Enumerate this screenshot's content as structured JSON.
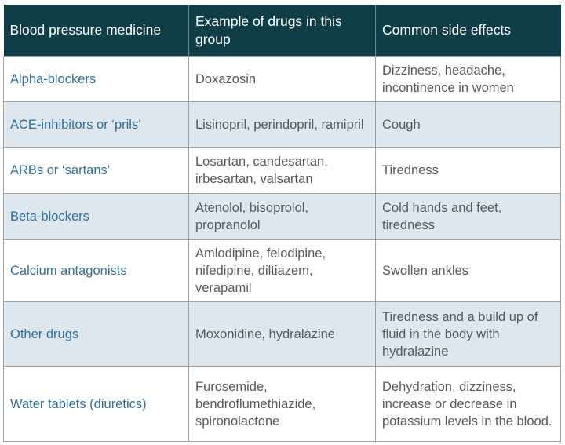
{
  "headers": [
    "Blood pressure medicine",
    "Example of drugs in this group",
    "Common side effects"
  ],
  "rows": [
    {
      "medicine": "Alpha-blockers",
      "drugs": "Doxazosin",
      "side_effects": "Dizziness, headache, incontinence in women"
    },
    {
      "medicine": "ACE-inhibitors or ‘prils’",
      "drugs": "Lisinopril, perindopril, ramipril",
      "side_effects": "Cough"
    },
    {
      "medicine": "ARBs or ‘sartans’",
      "drugs": "Losartan, candesartan, irbesartan, valsartan",
      "side_effects": "Tiredness"
    },
    {
      "medicine": "Beta-blockers",
      "drugs": "Atenolol, bisoprolol, propranolol",
      "side_effects": "Cold hands and feet, tiredness"
    },
    {
      "medicine": "Calcium antagonists",
      "drugs": "Amlodipine, felodipine, nifedipine, diltiazem, verapamil",
      "side_effects": "Swollen ankles"
    },
    {
      "medicine": "Other drugs",
      "drugs": "Moxonidine, hydralazine",
      "side_effects": "Tiredness and a build up of fluid in the body with hydralazine"
    },
    {
      "medicine": "Water tablets (diuretics)",
      "drugs": "Furosemide, bendroflumethiazide, spironolactone",
      "side_effects": "Dehydration, dizziness, increase or decrease in potassium levels in the blood."
    }
  ],
  "colors": {
    "header_bg": "#0f3e48",
    "alt_row_bg": "#dfe7ee",
    "medicine_text": "#2f6f9c"
  }
}
